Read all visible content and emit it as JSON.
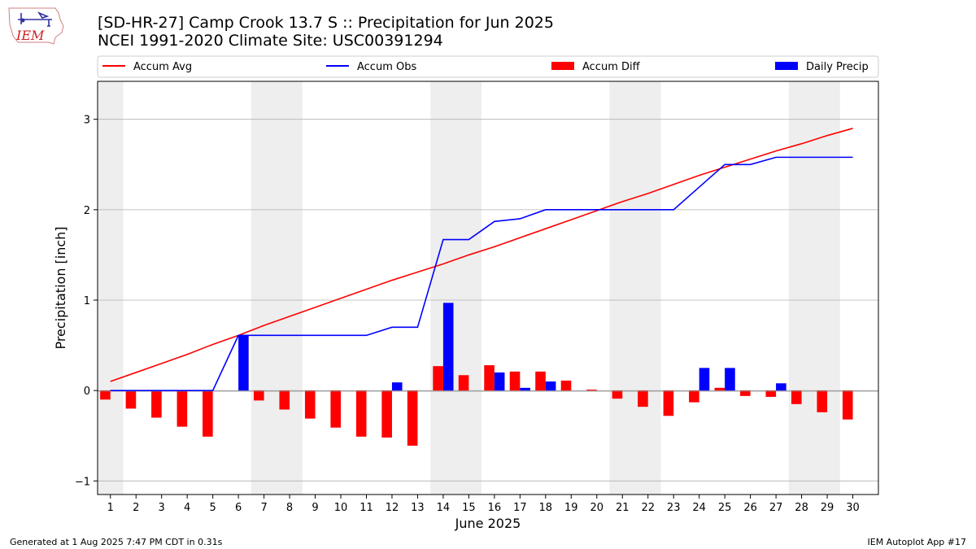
{
  "header": {
    "logo_text": "IEM",
    "title": "[SD-HR-27] Camp Crook 13.7 S :: Precipitation for Jun 2025",
    "subtitle": "NCEI 1991-2020 Climate Site: USC00391294"
  },
  "footer": {
    "left": "Generated at 1 Aug 2025 7:47 PM CDT in 0.31s",
    "right": "IEM Autoplot App #17"
  },
  "colors": {
    "accum_avg": "#ff0000",
    "accum_obs": "#0000ff",
    "accum_diff": "#ff0000",
    "daily_precip": "#0000ff",
    "weekend_shade": "#eeeeee",
    "grid": "#b0b0b0"
  },
  "chart_data": {
    "type": "bar",
    "xlabel": "June 2025",
    "ylabel": "Precipitation [inch]",
    "ylim": [
      -1.15,
      3.42
    ],
    "yticks": [
      -1,
      0,
      1,
      2,
      3
    ],
    "grid": "horizontal",
    "legend_placement": "top, above plot",
    "categories": [
      "1",
      "2",
      "3",
      "4",
      "5",
      "6",
      "7",
      "8",
      "9",
      "10",
      "11",
      "12",
      "13",
      "14",
      "15",
      "16",
      "17",
      "18",
      "19",
      "20",
      "21",
      "22",
      "23",
      "24",
      "25",
      "26",
      "27",
      "28",
      "29",
      "30"
    ],
    "shaded_days": [
      1,
      7,
      8,
      14,
      15,
      21,
      22,
      28,
      29
    ],
    "series": [
      {
        "name": "Accum Avg",
        "kind": "line",
        "values": [
          0.1,
          0.2,
          0.3,
          0.4,
          0.51,
          0.61,
          0.72,
          0.82,
          0.92,
          1.02,
          1.12,
          1.22,
          1.31,
          1.4,
          1.5,
          1.59,
          1.69,
          1.79,
          1.89,
          1.99,
          2.09,
          2.18,
          2.28,
          2.38,
          2.47,
          2.56,
          2.65,
          2.73,
          2.82,
          2.9
        ]
      },
      {
        "name": "Accum Obs",
        "kind": "line",
        "values": [
          0.0,
          0.0,
          0.0,
          0.0,
          0.0,
          0.61,
          0.61,
          0.61,
          0.61,
          0.61,
          0.61,
          0.7,
          0.7,
          1.67,
          1.67,
          1.87,
          1.9,
          2.0,
          2.0,
          2.0,
          2.0,
          2.0,
          2.0,
          2.25,
          2.5,
          2.5,
          2.58,
          2.58,
          2.58,
          2.58
        ]
      },
      {
        "name": "Accum Diff",
        "kind": "bar",
        "values": [
          -0.1,
          -0.2,
          -0.3,
          -0.4,
          -0.51,
          0.0,
          -0.11,
          -0.21,
          -0.31,
          -0.41,
          -0.51,
          -0.52,
          -0.61,
          0.27,
          0.17,
          0.28,
          0.21,
          0.21,
          0.11,
          0.01,
          -0.09,
          -0.18,
          -0.28,
          -0.13,
          0.03,
          -0.06,
          -0.07,
          -0.15,
          -0.24,
          -0.32
        ]
      },
      {
        "name": "Daily Precip",
        "kind": "bar",
        "values": [
          0,
          0,
          0,
          0,
          0,
          0.61,
          0,
          0,
          0,
          0,
          0,
          0.09,
          0,
          0.97,
          0,
          0.2,
          0.03,
          0.1,
          0,
          0,
          0,
          0,
          0,
          0.25,
          0.25,
          0,
          0.08,
          0,
          0,
          0
        ]
      }
    ]
  }
}
